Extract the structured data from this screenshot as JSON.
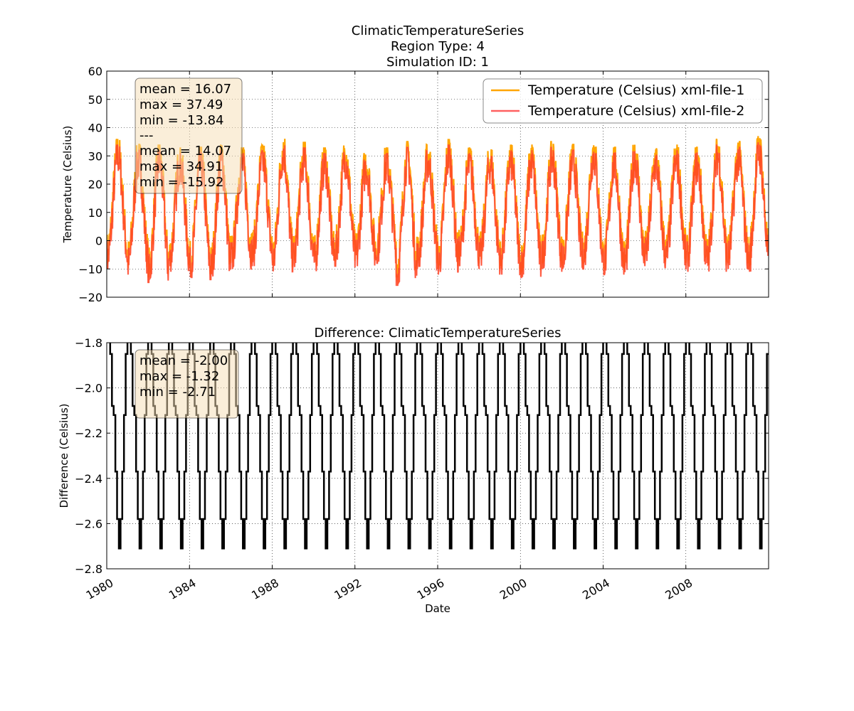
{
  "figure": {
    "title_lines": [
      "ClimaticTemperatureSeries",
      "Region Type: 4",
      "Simulation ID: 1"
    ]
  },
  "chart_data": [
    {
      "type": "line",
      "title": "",
      "xlabel": "",
      "ylabel": "Temperature (Celsius)",
      "x_range": [
        "1980-01-01",
        "2012-01-01"
      ],
      "ylim": [
        -20,
        60
      ],
      "yticks": [
        -20,
        -10,
        0,
        10,
        20,
        30,
        40,
        50,
        60
      ],
      "grid": true,
      "legend_position": "top-right",
      "series": [
        {
          "name": "Temperature (Celsius) xml-file-1",
          "color": "#ffa500",
          "x": [
            "1980-07",
            "1981-07",
            "1982-07",
            "1983-07",
            "1984-07",
            "1985-07",
            "1986-07",
            "1987-07",
            "1988-07",
            "1989-07",
            "1990-07",
            "1991-07",
            "1992-07",
            "1993-07",
            "1994-07",
            "1995-07",
            "1996-07",
            "1997-07",
            "1998-07",
            "1999-07",
            "2000-07",
            "2001-07",
            "2002-07",
            "2003-07",
            "2004-07",
            "2005-07",
            "2006-07",
            "2007-07",
            "2008-07",
            "2009-07",
            "2010-07",
            "2011-07"
          ],
          "annual_max": [
            36,
            34,
            34,
            33,
            33,
            34,
            33,
            34,
            37,
            35,
            33,
            35,
            32,
            33,
            35,
            34,
            36,
            33,
            33,
            34,
            34,
            35,
            34,
            36,
            33,
            35,
            33,
            34,
            33,
            36,
            35,
            37
          ],
          "annual_min": [
            -8,
            -10,
            -13,
            -9,
            -11,
            -12,
            -8,
            -7,
            -9,
            -8,
            -9,
            -7,
            -8,
            -6,
            -13,
            -8,
            -10,
            -7,
            -8,
            -10,
            -11,
            -8,
            -9,
            -8,
            -10,
            -10,
            -7,
            -8,
            -9,
            -9,
            -8,
            -9
          ],
          "stats": {
            "mean": 16.07,
            "max": 37.49,
            "min": -13.84
          }
        },
        {
          "name": "Temperature (Celsius) xml-file-2",
          "color": "#ff6060",
          "x": [
            "1980-07",
            "1981-07",
            "1982-07",
            "1983-07",
            "1984-07",
            "1985-07",
            "1986-07",
            "1987-07",
            "1988-07",
            "1989-07",
            "1990-07",
            "1991-07",
            "1992-07",
            "1993-07",
            "1994-07",
            "1995-07",
            "1996-07",
            "1997-07",
            "1998-07",
            "1999-07",
            "2000-07",
            "2001-07",
            "2002-07",
            "2003-07",
            "2004-07",
            "2005-07",
            "2006-07",
            "2007-07",
            "2008-07",
            "2009-07",
            "2010-07",
            "2011-07"
          ],
          "annual_max": [
            34,
            32,
            32,
            31,
            31,
            32,
            31,
            32,
            35,
            33,
            31,
            33,
            30,
            31,
            33,
            32,
            34,
            31,
            31,
            32,
            32,
            33,
            32,
            34,
            31,
            33,
            31,
            32,
            31,
            34,
            33,
            35
          ],
          "annual_min": [
            -10,
            -12,
            -15,
            -11,
            -13,
            -14,
            -10,
            -9,
            -11,
            -10,
            -11,
            -9,
            -10,
            -8,
            -16,
            -10,
            -12,
            -9,
            -10,
            -12,
            -13,
            -10,
            -11,
            -10,
            -12,
            -12,
            -9,
            -10,
            -11,
            -11,
            -10,
            -11
          ],
          "stats": {
            "mean": 14.07,
            "max": 34.91,
            "min": -15.92
          }
        }
      ],
      "stats_text": [
        "mean = 16.07",
        "max = 37.49",
        "min = -13.84",
        "---",
        "mean = 14.07",
        "max = 34.91",
        "min = -15.92"
      ]
    },
    {
      "type": "line",
      "title": "Difference: ClimaticTemperatureSeries",
      "xlabel": "Date",
      "ylabel": "Difference (Celsius)",
      "x_range": [
        "1980-01-01",
        "2012-01-01"
      ],
      "ylim": [
        -2.8,
        -1.8
      ],
      "yticks": [
        -2.8,
        -2.6,
        -2.4,
        -2.2,
        -2.0,
        -1.8
      ],
      "ytick_labels": [
        "−2.8",
        "−2.6",
        "−2.4",
        "−2.2",
        "−2.0",
        "−1.8"
      ],
      "xticks": [
        "1980",
        "1984",
        "1988",
        "1992",
        "1996",
        "2000",
        "2004",
        "2008"
      ],
      "grid": true,
      "series": [
        {
          "name": "",
          "color": "#000000",
          "stepped_annual_cycle": [
            -1.32,
            -1.6,
            -1.85,
            -2.08,
            -2.12,
            -2.37,
            -2.58,
            -2.71,
            -2.58,
            -2.37,
            -2.12,
            -1.85
          ],
          "stats": {
            "mean": -2.0,
            "max": -1.32,
            "min": -2.71
          }
        }
      ],
      "stats_text": [
        "mean = -2.00",
        "max = -1.32",
        "min = -2.71"
      ]
    }
  ]
}
